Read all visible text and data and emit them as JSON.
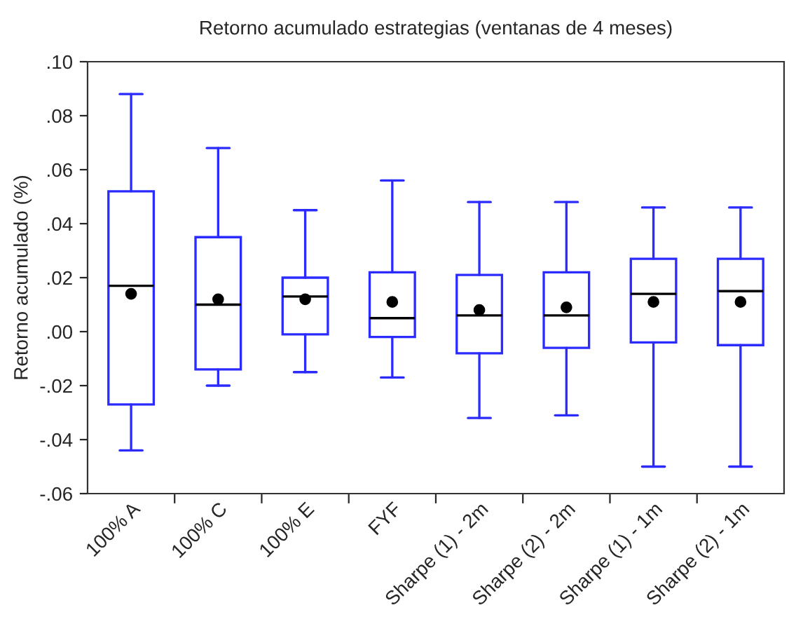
{
  "chart_data": {
    "type": "box",
    "title": "Retorno acumulado estrategias (ventanas de 4 meses)",
    "ylabel": "Retorno acumulado (%)",
    "categories": [
      "100% A",
      "100% C",
      "100% E",
      "FYF",
      "Sharpe (1) - 2m",
      "Sharpe (2) - 2m",
      "Sharpe (1) - 1m",
      "Sharpe (2) - 1m"
    ],
    "series": [
      {
        "color": "#2b2bff",
        "boxes": [
          {
            "low": -0.044,
            "q1": -0.027,
            "median": 0.017,
            "q3": 0.052,
            "high": 0.088,
            "mean": 0.014
          },
          {
            "low": -0.02,
            "q1": -0.014,
            "median": 0.01,
            "q3": 0.035,
            "high": 0.068,
            "mean": 0.012
          },
          {
            "low": -0.015,
            "q1": -0.001,
            "median": 0.013,
            "q3": 0.02,
            "high": 0.045,
            "mean": 0.012
          },
          {
            "low": -0.017,
            "q1": -0.002,
            "median": 0.005,
            "q3": 0.022,
            "high": 0.056,
            "mean": 0.011
          },
          {
            "low": -0.032,
            "q1": -0.008,
            "median": 0.006,
            "q3": 0.021,
            "high": 0.048,
            "mean": 0.008
          },
          {
            "low": -0.031,
            "q1": -0.006,
            "median": 0.006,
            "q3": 0.022,
            "high": 0.048,
            "mean": 0.009
          },
          {
            "low": -0.05,
            "q1": -0.004,
            "median": 0.014,
            "q3": 0.027,
            "high": 0.046,
            "mean": 0.011
          },
          {
            "low": -0.05,
            "q1": -0.005,
            "median": 0.015,
            "q3": 0.027,
            "high": 0.046,
            "mean": 0.011
          }
        ]
      }
    ],
    "ylim": [
      -0.06,
      0.1
    ],
    "yticks": [
      {
        "value": -0.06,
        "label": "-.06"
      },
      {
        "value": -0.04,
        "label": "-.04"
      },
      {
        "value": -0.02,
        "label": "-.02"
      },
      {
        "value": 0.0,
        "label": ".00"
      },
      {
        "value": 0.02,
        "label": ".02"
      },
      {
        "value": 0.04,
        "label": ".04"
      },
      {
        "value": 0.06,
        "label": ".06"
      },
      {
        "value": 0.08,
        "label": ".08"
      },
      {
        "value": 0.1,
        "label": ".10"
      }
    ],
    "grid": false,
    "legend": false
  }
}
